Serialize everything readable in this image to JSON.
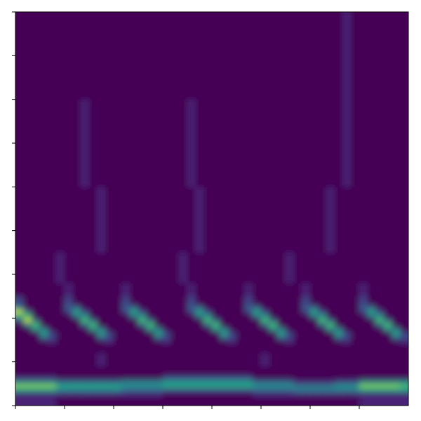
{
  "chart_data": {
    "type": "heatmap",
    "xlim": [
      0,
      8
    ],
    "ylim": [
      0,
      9
    ],
    "xticks": [
      0,
      1,
      2,
      3,
      4,
      5,
      6,
      7
    ],
    "yticks": [
      0,
      1,
      2,
      3,
      4,
      5,
      6,
      7,
      8,
      9
    ],
    "tick_labels": false,
    "color_range": [
      0,
      10
    ],
    "x_edges": [
      0,
      0.1667,
      0.3333,
      0.5,
      0.6667,
      0.8333,
      1,
      1.1667,
      1.3333,
      1.5,
      1.6667,
      1.8333,
      2,
      2.1667,
      2.3333,
      2.5,
      2.6667,
      2.8333,
      3,
      3.1667,
      3.3333,
      3.5,
      3.6667,
      3.8333,
      4,
      4.1667,
      4.3333,
      4.5,
      4.6667,
      4.8333,
      5,
      5.1667,
      5.3333,
      5.5,
      5.6667,
      5.8333,
      6,
      6.1667,
      6.3333,
      6.5,
      6.6667,
      6.8333,
      7,
      7.1667,
      7.3333,
      7.5,
      7.6667,
      7.8333,
      8
    ],
    "y_edges": [
      0,
      0.2,
      0.3,
      0.4,
      0.5,
      0.6,
      0.7,
      0.9,
      1.2,
      1.4,
      1.5,
      1.6,
      1.7,
      1.8,
      1.9,
      2.0,
      2.1,
      2.2,
      2.3,
      2.5,
      2.8,
      3.5,
      5,
      7,
      9
    ],
    "cells": [
      [
        1,
        1,
        1,
        1,
        1,
        0,
        0,
        0,
        0,
        0,
        0,
        0,
        0,
        0,
        0,
        0,
        0,
        0,
        0,
        0,
        0,
        0,
        0,
        0,
        0,
        0,
        0,
        0,
        0,
        0,
        0,
        0,
        0,
        0,
        0,
        0,
        0,
        0,
        0,
        0,
        0,
        0,
        1,
        1,
        1,
        1,
        1,
        1
      ],
      [
        1,
        1,
        1,
        1,
        1,
        1,
        1,
        1,
        1,
        1,
        1,
        1,
        1,
        1,
        1,
        1,
        1,
        1,
        0,
        0,
        0,
        0,
        0,
        0,
        0,
        0,
        0,
        0,
        0,
        1,
        1,
        1,
        1,
        1,
        1,
        1,
        1,
        1,
        1,
        1,
        1,
        1,
        1,
        1,
        1,
        1,
        1,
        1
      ],
      [
        5,
        5,
        5,
        5,
        5,
        4,
        4,
        4,
        4,
        4,
        4,
        4,
        4,
        3,
        3,
        3,
        3,
        3,
        2,
        2,
        2,
        2,
        2,
        2,
        2,
        2,
        2,
        2,
        2,
        3,
        3,
        3,
        3,
        3,
        4,
        4,
        4,
        4,
        4,
        4,
        4,
        4,
        5,
        5,
        5,
        5,
        5,
        5
      ],
      [
        8,
        8,
        8,
        8,
        8,
        6,
        6,
        6,
        6,
        6,
        6,
        6,
        6,
        5,
        5,
        5,
        5,
        5,
        6,
        6,
        6,
        6,
        6,
        6,
        6,
        6,
        6,
        6,
        6,
        5,
        5,
        5,
        5,
        5,
        4,
        4,
        4,
        4,
        4,
        5,
        5,
        5,
        8,
        8,
        8,
        8,
        8,
        7
      ],
      [
        4,
        4,
        4,
        4,
        4,
        3,
        3,
        3,
        3,
        3,
        3,
        3,
        3,
        4,
        4,
        4,
        4,
        4,
        5,
        5,
        5,
        5,
        5,
        5,
        5,
        5,
        5,
        5,
        5,
        3,
        3,
        3,
        3,
        3,
        1,
        1,
        1,
        1,
        1,
        2,
        2,
        2,
        4,
        4,
        4,
        4,
        4,
        4
      ],
      [
        1,
        1,
        1,
        1,
        1,
        0,
        0,
        0,
        0,
        0,
        0,
        0,
        0,
        0,
        0,
        0,
        0,
        0,
        2,
        2,
        2,
        2,
        2,
        2,
        2,
        2,
        2,
        2,
        2,
        0,
        0,
        0,
        0,
        0,
        0,
        0,
        0,
        0,
        0,
        0,
        0,
        0,
        0,
        0,
        0,
        0,
        0,
        0
      ],
      [
        0,
        0,
        0,
        0,
        0,
        0,
        0,
        0,
        0,
        0,
        0,
        0,
        0,
        0,
        0,
        0,
        0,
        0,
        0,
        0,
        0,
        0,
        0,
        0,
        0,
        0,
        0,
        0,
        0,
        0,
        0,
        0,
        0,
        0,
        0,
        0,
        0,
        0,
        0,
        0,
        0,
        0,
        0,
        0,
        0,
        0,
        0,
        0
      ],
      [
        0,
        0,
        0,
        0,
        0,
        0,
        0,
        0,
        0,
        0,
        1,
        0,
        0,
        0,
        0,
        0,
        0,
        0,
        0,
        0,
        0,
        0,
        0,
        0,
        0,
        0,
        0,
        0,
        0,
        0,
        1,
        0,
        0,
        0,
        0,
        0,
        0,
        0,
        0,
        0,
        0,
        0,
        0,
        0,
        0,
        0,
        0,
        0
      ],
      [
        0,
        0,
        0,
        0,
        0,
        0,
        0,
        0,
        0,
        0,
        0,
        0,
        0,
        0,
        0,
        0,
        0,
        0,
        0,
        0,
        0,
        0,
        0,
        0,
        0,
        0,
        0,
        0,
        0,
        0,
        0,
        0,
        0,
        0,
        0,
        0,
        0,
        0,
        0,
        0,
        0,
        0,
        0,
        0,
        0,
        0,
        0,
        0
      ],
      [
        0,
        0,
        0,
        0,
        1,
        0,
        0,
        0,
        0,
        0,
        0,
        1,
        0,
        0,
        0,
        0,
        0,
        0,
        1,
        0,
        0,
        0,
        0,
        0,
        0,
        0,
        1,
        0,
        0,
        0,
        0,
        0,
        0,
        1,
        0,
        0,
        0,
        0,
        0,
        0,
        1,
        0,
        0,
        0,
        0,
        0,
        0,
        1
      ],
      [
        0,
        0,
        0,
        3,
        2,
        0,
        0,
        0,
        0,
        0,
        3,
        2,
        0,
        0,
        0,
        0,
        0,
        3,
        2,
        0,
        0,
        0,
        0,
        0,
        0,
        3,
        2,
        0,
        0,
        0,
        0,
        0,
        3,
        2,
        0,
        0,
        0,
        0,
        0,
        3,
        2,
        0,
        0,
        0,
        0,
        0,
        3,
        2
      ],
      [
        0,
        0,
        0,
        6,
        2,
        0,
        0,
        0,
        0,
        0,
        6,
        2,
        0,
        0,
        0,
        0,
        0,
        6,
        2,
        0,
        0,
        0,
        0,
        0,
        0,
        6,
        2,
        0,
        0,
        0,
        0,
        0,
        6,
        2,
        0,
        0,
        0,
        0,
        0,
        6,
        2,
        0,
        0,
        0,
        0,
        0,
        6,
        2
      ],
      [
        0,
        0,
        5,
        4,
        0,
        0,
        0,
        0,
        0,
        5,
        4,
        0,
        0,
        0,
        0,
        0,
        5,
        4,
        0,
        0,
        0,
        0,
        0,
        0,
        5,
        4,
        0,
        0,
        0,
        0,
        0,
        5,
        4,
        0,
        0,
        0,
        0,
        0,
        5,
        4,
        0,
        0,
        0,
        0,
        0,
        5,
        4,
        0
      ],
      [
        0,
        4,
        7,
        0,
        0,
        0,
        0,
        0,
        3,
        7,
        0,
        0,
        0,
        0,
        0,
        3,
        7,
        0,
        0,
        0,
        0,
        0,
        0,
        3,
        7,
        0,
        0,
        0,
        0,
        0,
        3,
        7,
        0,
        0,
        0,
        0,
        0,
        3,
        7,
        0,
        0,
        0,
        0,
        0,
        3,
        7,
        0,
        0
      ],
      [
        2,
        9,
        3,
        0,
        0,
        0,
        0,
        0,
        7,
        3,
        0,
        0,
        0,
        0,
        0,
        7,
        3,
        0,
        0,
        0,
        0,
        0,
        0,
        7,
        3,
        0,
        0,
        0,
        0,
        0,
        7,
        3,
        0,
        0,
        0,
        0,
        0,
        7,
        3,
        0,
        0,
        0,
        0,
        0,
        7,
        3,
        0,
        0
      ],
      [
        6,
        7,
        0,
        0,
        0,
        0,
        0,
        4,
        5,
        0,
        0,
        0,
        0,
        0,
        4,
        5,
        0,
        0,
        0,
        0,
        0,
        0,
        4,
        5,
        0,
        0,
        0,
        0,
        0,
        4,
        5,
        0,
        0,
        0,
        0,
        0,
        4,
        5,
        0,
        0,
        0,
        0,
        0,
        4,
        5,
        0,
        0,
        0
      ],
      [
        9,
        3,
        0,
        0,
        0,
        0,
        2,
        6,
        2,
        0,
        0,
        0,
        0,
        2,
        6,
        2,
        0,
        0,
        0,
        0,
        0,
        2,
        6,
        2,
        0,
        0,
        0,
        0,
        2,
        6,
        2,
        0,
        0,
        0,
        0,
        2,
        6,
        2,
        0,
        0,
        0,
        0,
        2,
        6,
        2,
        0,
        0,
        0
      ],
      [
        4,
        0,
        0,
        0,
        0,
        0,
        3,
        3,
        0,
        0,
        0,
        0,
        0,
        3,
        3,
        0,
        0,
        0,
        0,
        0,
        0,
        3,
        3,
        0,
        0,
        0,
        0,
        0,
        3,
        3,
        0,
        0,
        0,
        0,
        0,
        3,
        3,
        0,
        0,
        0,
        0,
        0,
        3,
        3,
        0,
        0,
        0,
        0
      ],
      [
        2,
        0,
        0,
        0,
        0,
        0,
        2,
        0,
        0,
        0,
        0,
        0,
        0,
        2,
        0,
        0,
        0,
        0,
        0,
        0,
        0,
        2,
        0,
        0,
        0,
        0,
        0,
        0,
        2,
        0,
        0,
        0,
        0,
        0,
        0,
        2,
        0,
        0,
        0,
        0,
        0,
        0,
        2,
        0,
        0,
        0,
        0,
        0
      ],
      [
        0,
        0,
        0,
        0,
        0,
        0,
        1,
        0,
        0,
        0,
        0,
        0,
        0,
        1,
        0,
        0,
        0,
        0,
        0,
        0,
        0,
        1,
        0,
        0,
        0,
        0,
        0,
        0,
        1,
        0,
        0,
        0,
        0,
        0,
        0,
        1,
        0,
        0,
        0,
        0,
        0,
        0,
        1,
        0,
        0,
        0,
        0,
        0
      ],
      [
        0,
        0,
        0,
        0,
        0,
        1,
        0,
        0,
        0,
        0,
        0,
        0,
        0,
        0,
        0,
        0,
        0,
        0,
        0,
        0,
        1,
        0,
        0,
        0,
        0,
        0,
        0,
        0,
        0,
        0,
        0,
        0,
        0,
        1,
        0,
        0,
        0,
        0,
        0,
        0,
        0,
        0,
        0,
        0,
        0,
        0,
        0,
        0
      ],
      [
        0,
        0,
        0,
        0,
        0,
        0,
        0,
        0,
        0,
        0,
        1,
        0,
        0,
        0,
        0,
        0,
        0,
        0,
        0,
        0,
        0,
        0,
        1,
        0,
        0,
        0,
        0,
        0,
        0,
        0,
        0,
        0,
        0,
        0,
        0,
        0,
        0,
        0,
        1,
        0,
        0,
        0,
        0,
        0,
        0,
        0,
        0,
        0
      ],
      [
        0,
        0,
        0,
        0,
        0,
        0,
        0,
        0,
        1,
        0,
        0,
        0,
        0,
        0,
        0,
        0,
        0,
        0,
        0,
        0,
        0,
        1,
        0,
        0,
        0,
        0,
        0,
        0,
        0,
        0,
        0,
        0,
        0,
        0,
        0,
        0,
        0,
        0,
        0,
        0,
        1,
        0,
        0,
        0,
        0,
        0,
        0,
        0
      ],
      [
        0,
        0,
        0,
        0,
        0,
        0,
        0,
        0,
        0,
        0,
        0,
        0,
        0,
        0,
        0,
        0,
        0,
        0,
        0,
        0,
        0,
        0,
        0,
        0,
        0,
        0,
        0,
        0,
        0,
        0,
        0,
        0,
        0,
        0,
        0,
        0,
        0,
        0,
        0,
        0,
        1,
        0,
        0,
        0,
        0,
        0,
        0,
        0
      ]
    ]
  }
}
